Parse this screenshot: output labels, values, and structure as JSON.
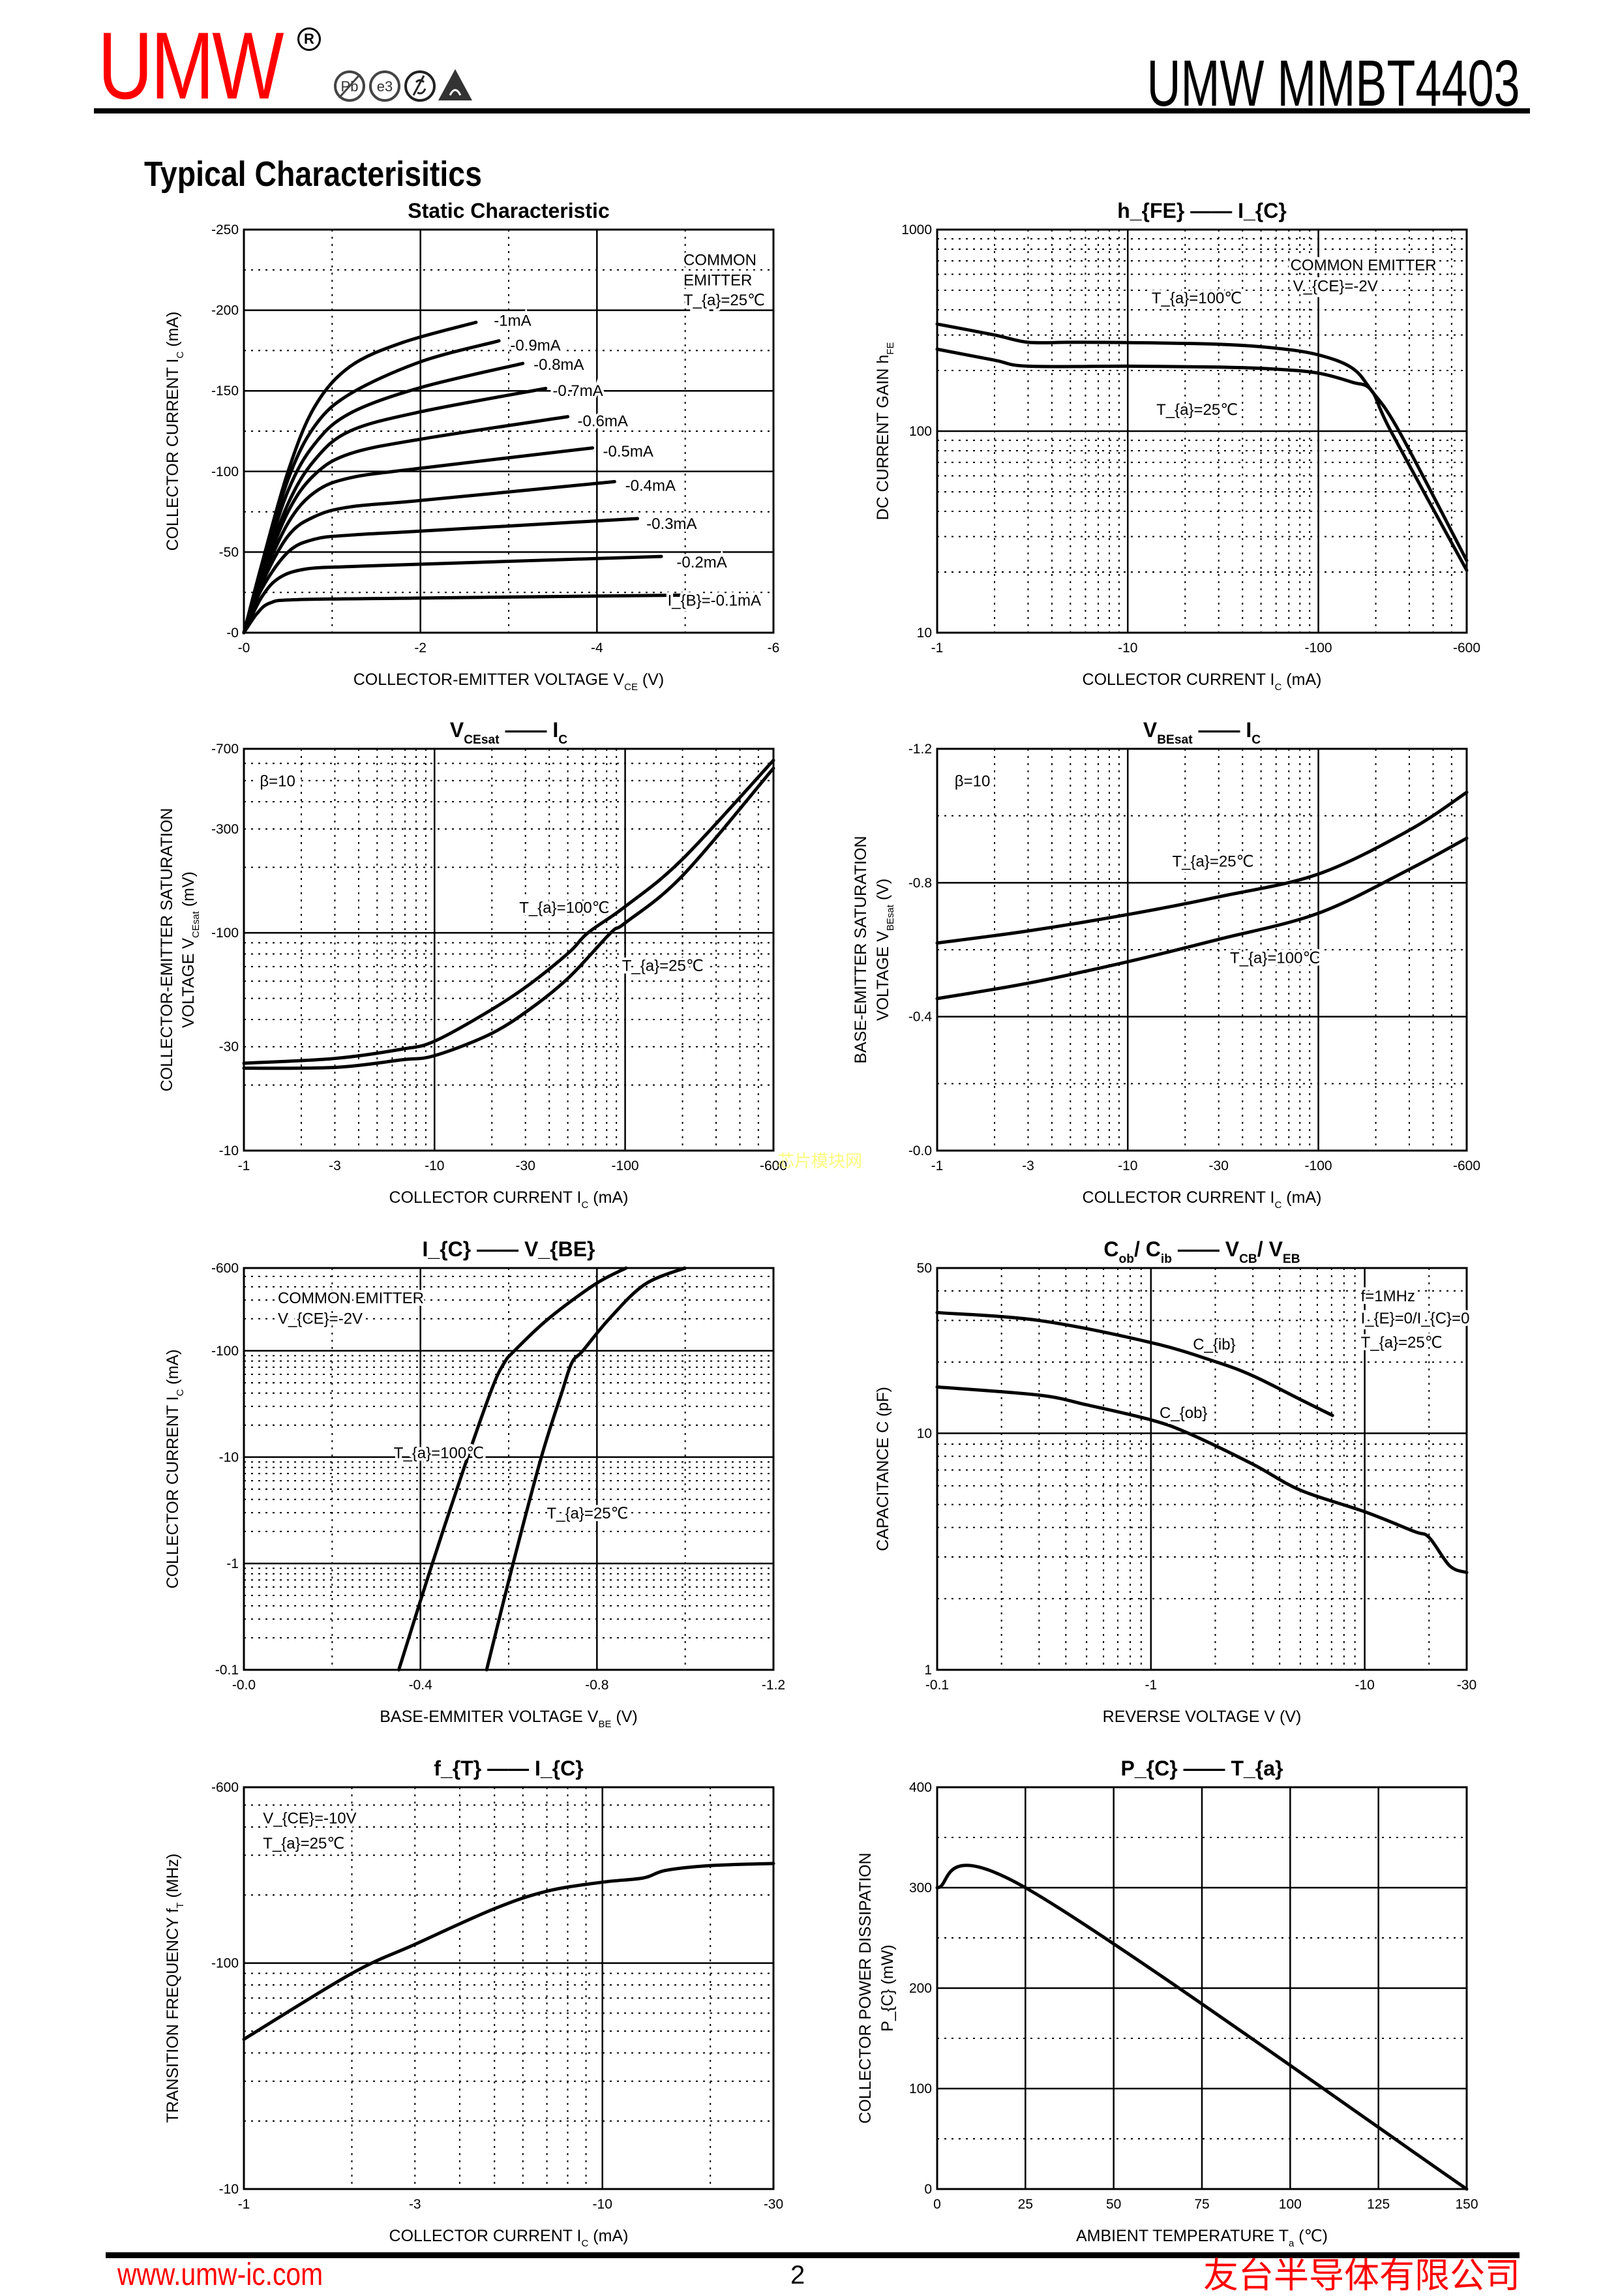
{
  "header": {
    "logo_text": "UMW",
    "registered_mark": "R",
    "cert_icons": [
      {
        "name": "lead-free-icon",
        "text": "Pb"
      },
      {
        "name": "e3-icon",
        "text": "e3"
      },
      {
        "name": "rohs-icon",
        "text": ""
      },
      {
        "name": "esd-icon",
        "text": ""
      }
    ],
    "part_title": "UMW MMBT4403"
  },
  "section_title": "Typical Characterisitics",
  "watermark": "芯片模块网",
  "footer": {
    "website": "www.umw-ic.com",
    "page_number": "2",
    "company": "友台半导体有限公司"
  },
  "chart_data": [
    {
      "id": "static-characteristic",
      "type": "line",
      "title": "Static Characteristic",
      "xlabel": "COLLECTOR-EMITTER VOLTAGE    V_{CE}    (V)",
      "ylabel": [
        "COLLECTOR CURRENT     I_{C}     (mA)"
      ],
      "xscale": "linear",
      "yscale": "linear",
      "xlim": [
        0,
        -6
      ],
      "ylim": [
        0,
        -250
      ],
      "xticks": [
        0,
        -2,
        -4,
        -6
      ],
      "xtick_labels": [
        "-0",
        "-2",
        "-4",
        "-6"
      ],
      "yticks": [
        0,
        -50,
        -100,
        -150,
        -200,
        -250
      ],
      "ytick_labels": [
        "-0",
        "-50",
        "-100",
        "-150",
        "-200",
        "-250"
      ],
      "annotations": [
        "COMMON",
        "EMITTER",
        "T_{a}=25℃"
      ],
      "series": [
        {
          "name": "IB=-1mA",
          "label": "-1mA",
          "x": [
            0,
            -0.2,
            -0.5,
            -0.8,
            -1.2,
            -1.8,
            -2.63
          ],
          "y": [
            0,
            -42,
            -100,
            -140,
            -165,
            -180,
            -192.5
          ]
        },
        {
          "name": "IB=-0.9mA",
          "label": "-0.9mA",
          "x": [
            0,
            -0.2,
            -0.5,
            -0.8,
            -1.2,
            -2,
            -2.89
          ],
          "y": [
            0,
            -40,
            -95,
            -128,
            -148,
            -168,
            -181
          ]
        },
        {
          "name": "IB=-0.8mA",
          "label": "-0.8mA",
          "x": [
            0,
            -0.2,
            -0.5,
            -0.8,
            -1.2,
            -2,
            -3.16
          ],
          "y": [
            0,
            -38,
            -88,
            -117,
            -136,
            -152,
            -167
          ]
        },
        {
          "name": "IB=-0.7mA",
          "label": "-0.7mA",
          "x": [
            0,
            -0.2,
            -0.5,
            -0.8,
            -1.2,
            -2,
            -3.42
          ],
          "y": [
            0,
            -36,
            -80,
            -107,
            -125,
            -137,
            -151.5
          ]
        },
        {
          "name": "IB=-0.6mA",
          "label": "-0.6mA",
          "x": [
            0,
            -0.2,
            -0.5,
            -0.8,
            -1.2,
            -2,
            -3.67
          ],
          "y": [
            0,
            -34,
            -75,
            -98,
            -111,
            -120,
            -134
          ]
        },
        {
          "name": "IB=-0.5mA",
          "label": "-0.5mA",
          "x": [
            0,
            -0.2,
            -0.5,
            -0.8,
            -1.2,
            -2,
            -3.95
          ],
          "y": [
            0,
            -32,
            -68,
            -87,
            -96,
            -102,
            -114.6
          ]
        },
        {
          "name": "IB=-0.4mA",
          "label": "-0.4mA",
          "x": [
            0,
            -0.2,
            -0.5,
            -0.8,
            -1.2,
            -2,
            -4.2
          ],
          "y": [
            0,
            -30,
            -60,
            -72,
            -78,
            -82,
            -93.7
          ]
        },
        {
          "name": "IB=-0.3mA",
          "label": "-0.3mA",
          "x": [
            0,
            -0.2,
            -0.5,
            -0.8,
            -1.2,
            -2,
            -4.46
          ],
          "y": [
            0,
            -27,
            -50,
            -58,
            -60.5,
            -63,
            -70.8
          ]
        },
        {
          "name": "IB=-0.2mA",
          "label": "-0.2mA",
          "x": [
            0,
            -0.2,
            -0.4,
            -0.7,
            -1.2,
            -2,
            -4.73
          ],
          "y": [
            0,
            -22,
            -34,
            -39.5,
            -41,
            -42.5,
            -47.3
          ]
        },
        {
          "name": "IB=-0.1mA",
          "label": "I_{B}=-0.1mA",
          "x": [
            0,
            -0.15,
            -0.3,
            -0.6,
            -2,
            -5
          ],
          "y": [
            0,
            -12,
            -18.5,
            -20.5,
            -21.5,
            -23.3
          ]
        }
      ]
    },
    {
      "id": "hfe-vs-ic",
      "type": "line",
      "title": "h_{FE}    ——    I_{C}",
      "xlabel": "COLLECTOR CURRENT     I_{C}     (mA)",
      "ylabel": [
        "DC CURRENT GAIN     h_{FE}"
      ],
      "xscale": "log",
      "yscale": "log",
      "xlim": [
        -1,
        -600
      ],
      "ylim": [
        10,
        1000
      ],
      "xticks": [
        -1,
        -10,
        -100,
        -600
      ],
      "xtick_labels": [
        "-1",
        "-10",
        "-100",
        "-600"
      ],
      "yticks": [
        10,
        100,
        1000
      ],
      "ytick_labels": [
        "10",
        "100",
        "1000"
      ],
      "annotations": [
        "COMMON EMITTER",
        "V_{CE}=-2V",
        "T_{a}=100℃",
        "T_{a}=25℃"
      ],
      "series": [
        {
          "name": "Ta=100℃",
          "x": [
            -1,
            -2,
            -3,
            -5,
            -10,
            -30,
            -60,
            -100,
            -150,
            -190,
            -265,
            -600
          ],
          "y": [
            340,
            300,
            276,
            276,
            275,
            270,
            258,
            239,
            206,
            159,
            100,
            22.8
          ]
        },
        {
          "name": "Ta=25℃",
          "x": [
            -1,
            -2,
            -3,
            -10,
            -30,
            -60,
            -100,
            -150,
            -190,
            -240,
            -600
          ],
          "y": [
            255,
            225,
            210,
            210,
            208,
            203,
            194,
            175,
            159,
            100,
            20.4
          ]
        }
      ]
    },
    {
      "id": "vcesat-vs-ic",
      "type": "line",
      "title": "V_{CEsat}    ——    I_{C}",
      "xlabel": "COLLECTOR CURRENT     I_{C}     (mA)",
      "ylabel": [
        "COLLECTOR-EMITTER SATURATION",
        "VOLTAGE     V_{CEsat}     (mV)"
      ],
      "xscale": "log",
      "yscale": "log",
      "xlim": [
        -1,
        -600
      ],
      "ylim": [
        -10,
        -700
      ],
      "xticks": [
        -1,
        -3,
        -10,
        -30,
        -100,
        -600
      ],
      "xtick_labels": [
        "-1",
        "-3",
        "-10",
        "-30",
        "-100",
        "-600"
      ],
      "yticks": [
        -10,
        -30,
        -100,
        -300,
        -700
      ],
      "ytick_labels": [
        "-10",
        "-30",
        "-100",
        "-300",
        "-700"
      ],
      "annotations": [
        "β=10",
        "T_{a}=100℃",
        "T_{a}=25℃"
      ],
      "series": [
        {
          "name": "Ta=100℃",
          "x": [
            -1,
            -3,
            -6.7,
            -10,
            -19.5,
            -31.5,
            -50.8,
            -63.8,
            -100,
            -200,
            -600
          ],
          "y": [
            -25.2,
            -26.5,
            -29.2,
            -31.8,
            -43.9,
            -58,
            -81.3,
            -100,
            -132,
            -218,
            -620
          ]
        },
        {
          "name": "Ta=25℃",
          "x": [
            -1,
            -3,
            -6.7,
            -10,
            -19.5,
            -31.5,
            -50.8,
            -84,
            -100,
            -200,
            -600
          ],
          "y": [
            -23.9,
            -24.1,
            -26.1,
            -27.3,
            -34.2,
            -44.5,
            -62.5,
            -100,
            -111,
            -183,
            -570
          ]
        }
      ]
    },
    {
      "id": "vbesat-vs-ic",
      "type": "line",
      "title": "V_{BEsat}    ——    I_{C}",
      "xlabel": "COLLECTOR CURRENT     I_{C}     (mA)",
      "ylabel": [
        "BASE-EMITTER SATURATION",
        "VOLTAGE     V_{BEsat}     (V)"
      ],
      "xscale": "log",
      "yscale": "linear",
      "xlim": [
        -1,
        -600
      ],
      "ylim": [
        0,
        -1.2
      ],
      "xticks": [
        -1,
        -3,
        -10,
        -30,
        -100,
        -600
      ],
      "xtick_labels": [
        "-1",
        "-3",
        "-10",
        "-30",
        "-100",
        "-600"
      ],
      "yticks": [
        0,
        -0.4,
        -0.8,
        -1.2
      ],
      "ytick_labels": [
        "-0.0",
        "-0.4",
        "-0.8",
        "-1.2"
      ],
      "annotations": [
        "β=10",
        "T_{a}=25℃",
        "T_{a}=100℃"
      ],
      "series": [
        {
          "name": "Ta=25℃",
          "x": [
            -1,
            -3,
            -10,
            -30,
            -100,
            -300,
            -600
          ],
          "y": [
            -0.62,
            -0.656,
            -0.705,
            -0.758,
            -0.826,
            -0.957,
            -1.07
          ]
        },
        {
          "name": "Ta=100℃",
          "x": [
            -1,
            -3,
            -10,
            -30,
            -100,
            -300,
            -600
          ],
          "y": [
            -0.454,
            -0.5,
            -0.564,
            -0.631,
            -0.709,
            -0.84,
            -0.933
          ]
        }
      ]
    },
    {
      "id": "ic-vs-vbe",
      "type": "line",
      "title": "I_{C}    ——    V_{BE}",
      "xlabel": "BASE-EMMITER VOLTAGE    V_{BE}   (V)",
      "ylabel": [
        "COLLECTOR CURRENT     I_{C}     (mA)"
      ],
      "xscale": "linear",
      "yscale": "log",
      "xlim": [
        0,
        -1.2
      ],
      "ylim": [
        -0.1,
        -600
      ],
      "xticks": [
        0,
        -0.4,
        -0.8,
        -1.2
      ],
      "xtick_labels": [
        "-0.0",
        "-0.4",
        "-0.8",
        "-1.2"
      ],
      "yticks": [
        -0.1,
        -1,
        -10,
        -100,
        -600
      ],
      "ytick_labels": [
        "-0.1",
        "-1",
        "-10",
        "-100",
        "-600"
      ],
      "annotations": [
        "COMMON EMITTER",
        "V_{CE}=-2V",
        "T_{a}=100℃",
        "T_{a}=25℃"
      ],
      "series": [
        {
          "name": "Ta=100℃",
          "x": [
            -0.351,
            -0.427,
            -0.507,
            -0.563,
            -0.59,
            -0.613,
            -0.69,
            -0.795,
            -0.866
          ],
          "y": [
            -0.1,
            -1,
            -10,
            -45,
            -77,
            -100,
            -200,
            -420,
            -600
          ]
        },
        {
          "name": "Ta=25℃",
          "x": [
            -0.55,
            -0.61,
            -0.674,
            -0.72,
            -0.743,
            -0.768,
            -0.828,
            -0.908,
            -0.999
          ],
          "y": [
            -0.1,
            -1,
            -10,
            -40,
            -77,
            -100,
            -200,
            -420,
            -600
          ]
        }
      ]
    },
    {
      "id": "capacitance-vs-voltage",
      "type": "line",
      "title": "C_{ob}/ C_{ib}    ——    V_{CB}/ V_{EB}",
      "xlabel": "REVERSE VOLTAGE     V     (V)",
      "ylabel": [
        "CAPACITANCE     C     (pF)"
      ],
      "xscale": "log",
      "yscale": "log",
      "xlim": [
        -0.1,
        -30
      ],
      "ylim": [
        1,
        50
      ],
      "xticks": [
        -0.1,
        -1,
        -10,
        -30
      ],
      "xtick_labels": [
        "-0.1",
        "-1",
        "-10",
        "-30"
      ],
      "yticks": [
        1,
        10,
        50
      ],
      "ytick_labels": [
        "1",
        "10",
        "50"
      ],
      "annotations": [
        "f=1MHz",
        "I_{E}=0/I_{C}=0",
        "T_{a}=25℃",
        "C_{ib}",
        "C_{ob}"
      ],
      "series": [
        {
          "name": "Cib",
          "x": [
            -0.1,
            -0.3,
            -1,
            -2,
            -3,
            -5,
            -7.07
          ],
          "y": [
            32.4,
            30,
            24.2,
            20.1,
            17.5,
            13.9,
            11.9
          ]
        },
        {
          "name": "Cob",
          "x": [
            -0.1,
            -0.3,
            -0.5,
            -1,
            -1.5,
            -3,
            -5,
            -10,
            -17,
            -20,
            -25,
            -30
          ],
          "y": [
            15.7,
            14.5,
            13.2,
            11.4,
            10,
            7.4,
            5.75,
            4.66,
            3.85,
            3.63,
            2.75,
            2.58
          ]
        }
      ]
    },
    {
      "id": "ft-vs-ic",
      "type": "line",
      "title": "f_{T}    ——    I_{C}",
      "xlabel": "COLLECTOR CURRENT     I_{C}     (mA)",
      "ylabel": [
        "TRANSITION FREQUENCY     f_{T}     (MHz)"
      ],
      "xscale": "log",
      "yscale": "log",
      "xlim": [
        -1,
        -30
      ],
      "ylim": [
        -10,
        -600
      ],
      "xticks": [
        -1,
        -3,
        -10,
        -30
      ],
      "xtick_labels": [
        "-1",
        "-3",
        "-10",
        "-30"
      ],
      "yticks": [
        -10,
        -100,
        -600
      ],
      "ytick_labels": [
        "-10",
        "-100",
        "-600"
      ],
      "annotations": [
        "V_{CE}=-10V",
        "T_{a}=25℃"
      ],
      "series": [
        {
          "name": "Ta=25℃",
          "x": [
            -1,
            -2,
            -3,
            -5,
            -7,
            -10,
            -13,
            -15,
            -20,
            -30
          ],
          "y": [
            -46,
            -90,
            -121,
            -174,
            -208,
            -228,
            -238,
            -257,
            -270,
            -276
          ]
        }
      ]
    },
    {
      "id": "pc-vs-ta",
      "type": "line",
      "title": "P_{C}    ——    T_{a}",
      "xlabel": "AMBIENT TEMPERATURE     T_{a}     (℃)",
      "ylabel": [
        "COLLECTOR POWER DISSIPATION",
        "P_{C}     (mW)"
      ],
      "xscale": "linear",
      "yscale": "linear",
      "xlim": [
        0,
        150
      ],
      "ylim": [
        0,
        400
      ],
      "xticks": [
        0,
        25,
        50,
        75,
        100,
        125,
        150
      ],
      "xtick_labels": [
        "0",
        "25",
        "50",
        "75",
        "100",
        "125",
        "150"
      ],
      "yticks": [
        0,
        100,
        200,
        300,
        400
      ],
      "ytick_labels": [
        "0",
        "100",
        "200",
        "300",
        "400"
      ],
      "annotations": [],
      "series": [
        {
          "name": "Pc",
          "x": [
            0,
            25,
            150
          ],
          "y": [
            300,
            300,
            0
          ]
        }
      ]
    }
  ]
}
